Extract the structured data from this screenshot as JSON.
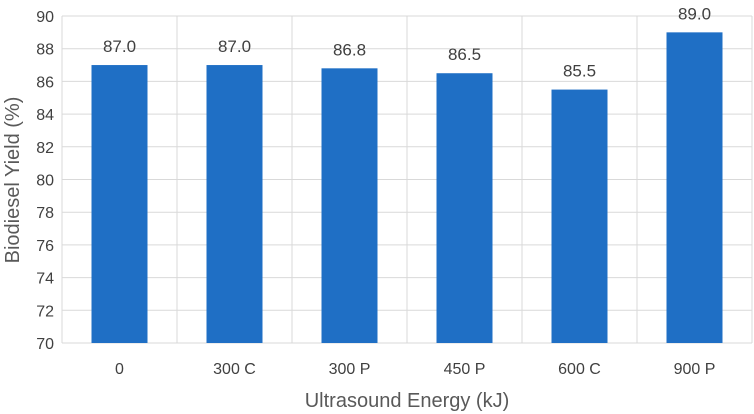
{
  "chart_data": {
    "type": "bar",
    "categories": [
      "0",
      "300 C",
      "300 P",
      "450 P",
      "600 C",
      "900 P"
    ],
    "values": [
      87.0,
      87.0,
      86.8,
      86.5,
      85.5,
      89.0
    ],
    "data_labels": [
      "87.0",
      "87.0",
      "86.8",
      "86.5",
      "85.5",
      "89.0"
    ],
    "title": "",
    "xlabel": "Ultrasound Energy (kJ)",
    "ylabel": "Biodiesel Yield (%)",
    "ylim": [
      70,
      90
    ],
    "yticks": [
      70,
      72,
      74,
      76,
      78,
      80,
      82,
      84,
      86,
      88,
      90
    ],
    "grid": true,
    "legend": "none",
    "colors": {
      "bar": "#1f6fc5",
      "grid": "#d9d9d9",
      "text": "#404040",
      "axis_title": "#595959"
    }
  }
}
